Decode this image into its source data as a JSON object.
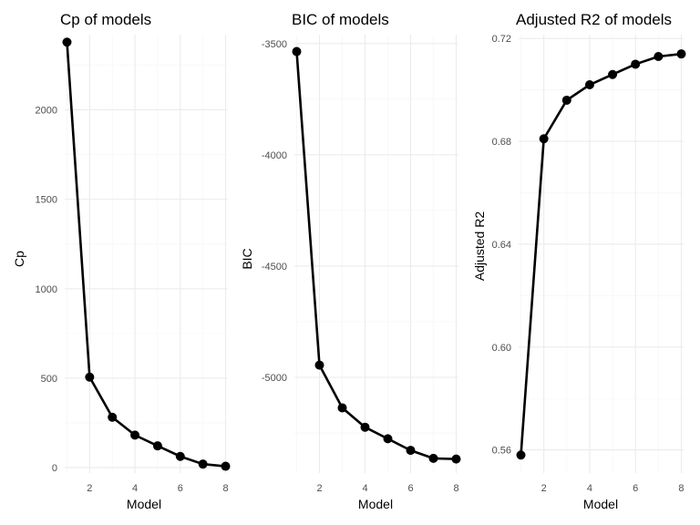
{
  "chart_data": [
    {
      "type": "line",
      "title": "Cp of models",
      "xlabel": "Model",
      "ylabel": "Cp",
      "x": [
        1,
        2,
        3,
        4,
        5,
        6,
        7,
        8
      ],
      "series": [
        {
          "values": [
            2378,
            506,
            282,
            182,
            122,
            63,
            20,
            8
          ]
        }
      ],
      "xlim": [
        0.9,
        8.1
      ],
      "ylim": [
        -30,
        2420
      ],
      "xticks": [
        2,
        4,
        6,
        8
      ],
      "xtick_labels": [
        "2",
        "4",
        "6",
        "8"
      ],
      "yticks": [
        0,
        500,
        1000,
        1500,
        2000
      ],
      "ytick_labels": [
        "0",
        "500",
        "1000",
        "1500",
        "2000"
      ],
      "grid": true,
      "color": "#000000"
    },
    {
      "type": "line",
      "title": "BIC of models",
      "xlabel": "Model",
      "ylabel": "BIC",
      "x": [
        1,
        2,
        3,
        4,
        5,
        6,
        7,
        8
      ],
      "series": [
        {
          "values": [
            -3536,
            -4945,
            -5137,
            -5224,
            -5276,
            -5328,
            -5364,
            -5367
          ]
        }
      ],
      "xlim": [
        0.9,
        8.1
      ],
      "ylim": [
        -5430,
        -3460
      ],
      "xticks": [
        2,
        4,
        6,
        8
      ],
      "xtick_labels": [
        "2",
        "4",
        "6",
        "8"
      ],
      "yticks": [
        -5000,
        -4500,
        -4000,
        -3500
      ],
      "ytick_labels": [
        "-5000",
        "-4500",
        "-4000",
        "-3500"
      ],
      "grid": true,
      "color": "#000000"
    },
    {
      "type": "line",
      "title": "Adjusted R2 of models",
      "xlabel": "Model",
      "ylabel": "Adjusted R2",
      "x": [
        1,
        2,
        3,
        4,
        5,
        6,
        7,
        8
      ],
      "series": [
        {
          "values": [
            0.558,
            0.681,
            0.696,
            0.702,
            0.706,
            0.71,
            0.713,
            0.714
          ]
        }
      ],
      "xlim": [
        0.9,
        8.1
      ],
      "ylim": [
        0.551,
        0.7215
      ],
      "xticks": [
        2,
        4,
        6,
        8
      ],
      "xtick_labels": [
        "2",
        "4",
        "6",
        "8"
      ],
      "yticks": [
        0.56,
        0.6,
        0.64,
        0.68,
        0.72
      ],
      "ytick_labels": [
        "0.56",
        "0.60",
        "0.64",
        "0.68",
        "0.72"
      ],
      "grid": true,
      "color": "#000000"
    }
  ]
}
